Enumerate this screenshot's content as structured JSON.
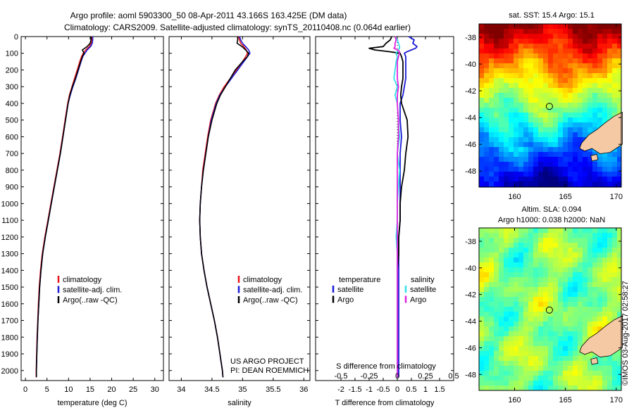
{
  "header": {
    "line1": "Argo profile: aoml 5903300_50 08-Apr-2011 43.166S 163.425E (DM data)",
    "line2": "Climatology: CARS2009. Satellite-adjusted climatology: synTS_20110408.nc (0.064d earlier)"
  },
  "colors": {
    "climatology": "#e8141b",
    "satellite": "#1b1bd6",
    "argo": "#000000",
    "temp_sat_diff": "#1b1bd6",
    "temp_argo_diff": "#000000",
    "sal_sat_diff": "#33e0e8",
    "sal_argo_diff": "#e020e0",
    "land": "#f5c9a4"
  },
  "depth_axis": {
    "ticks": [
      0,
      100,
      200,
      300,
      400,
      500,
      600,
      700,
      800,
      900,
      1000,
      1100,
      1200,
      1300,
      1400,
      1500,
      1600,
      1700,
      1800,
      1900,
      2000
    ],
    "range": [
      0,
      2060
    ]
  },
  "chart_data": [
    {
      "type": "line",
      "id": "temperature",
      "xlabel": "temperature (deg C)",
      "ylabel": "",
      "xlim": [
        -1,
        32
      ],
      "ylim": [
        2060,
        0
      ],
      "xticks": [
        0,
        5,
        10,
        15,
        20,
        25,
        30
      ],
      "legend": {
        "placement": "lower-center",
        "entries": [
          "climatology",
          "satellite-adj. clim.",
          "Argo(..raw -QC)"
        ]
      },
      "depth": [
        0,
        20,
        40,
        60,
        80,
        100,
        120,
        150,
        200,
        250,
        300,
        350,
        400,
        500,
        600,
        700,
        800,
        900,
        1000,
        1100,
        1200,
        1300,
        1400,
        1500,
        1600,
        1700,
        1800,
        1900,
        2000,
        2040
      ],
      "series": [
        {
          "name": "climatology",
          "values": [
            15.5,
            15.4,
            15.3,
            14.8,
            14.0,
            13.4,
            13.0,
            12.6,
            12.0,
            11.4,
            10.8,
            10.2,
            9.8,
            9.2,
            8.6,
            8.0,
            7.3,
            6.6,
            5.9,
            5.2,
            4.5,
            3.9,
            3.5,
            3.2,
            3.0,
            2.85,
            2.7,
            2.6,
            2.5,
            2.5
          ]
        },
        {
          "name": "satellite-adj. clim.",
          "values": [
            15.6,
            15.6,
            15.5,
            15.1,
            14.3,
            13.8,
            13.3,
            12.9,
            12.3,
            11.7,
            11.0,
            10.4,
            9.9,
            9.3,
            8.7,
            8.1,
            7.4,
            6.7,
            6.0,
            5.3,
            4.6,
            4.0,
            3.6,
            3.3,
            3.1,
            2.9,
            2.75,
            2.65,
            2.55,
            2.55
          ]
        },
        {
          "name": "Argo(..raw -QC)",
          "values": [
            15.2,
            15.2,
            15.0,
            14.3,
            13.2,
            13.6,
            13.2,
            12.8,
            12.2,
            11.6,
            10.9,
            10.3,
            9.9,
            9.3,
            8.7,
            8.1,
            7.4,
            6.7,
            6.0,
            5.3,
            4.6,
            4.0,
            3.6,
            3.3,
            3.1,
            2.9,
            2.75,
            2.65,
            2.55,
            2.55
          ]
        }
      ]
    },
    {
      "type": "line",
      "id": "salinity",
      "xlabel": "salinity",
      "ylabel": "",
      "xlim": [
        33.8,
        36.1
      ],
      "ylim": [
        2060,
        0
      ],
      "xticks": [
        34,
        34.5,
        35,
        35.5,
        36
      ],
      "legend": {
        "placement": "lower-center",
        "entries": [
          "climatology",
          "satellite-adj. clim.",
          "Argo(..raw -QC)"
        ]
      },
      "annotation": [
        "US ARGO PROJECT",
        "PI: DEAN ROEMMICH"
      ],
      "depth": [
        0,
        20,
        40,
        60,
        80,
        100,
        120,
        150,
        200,
        250,
        300,
        350,
        400,
        500,
        600,
        700,
        800,
        900,
        1000,
        1100,
        1200,
        1300,
        1400,
        1500,
        1600,
        1700,
        1800,
        1900,
        2000,
        2040
      ],
      "series": [
        {
          "name": "climatology",
          "values": [
            34.93,
            34.95,
            34.97,
            35.02,
            35.06,
            35.08,
            35.05,
            35.0,
            34.9,
            34.8,
            34.7,
            34.62,
            34.56,
            34.48,
            34.43,
            34.39,
            34.35,
            34.33,
            34.31,
            34.3,
            34.31,
            34.33,
            34.37,
            34.42,
            34.48,
            34.54,
            34.59,
            34.63,
            34.67,
            34.68
          ]
        },
        {
          "name": "satellite-adj. clim.",
          "values": [
            34.95,
            34.97,
            35.0,
            35.05,
            35.1,
            35.12,
            35.08,
            35.02,
            34.92,
            34.82,
            34.72,
            34.63,
            34.57,
            34.49,
            34.44,
            34.4,
            34.36,
            34.33,
            34.31,
            34.3,
            34.31,
            34.33,
            34.37,
            34.42,
            34.48,
            34.54,
            34.59,
            34.63,
            34.67,
            34.68
          ]
        },
        {
          "name": "Argo(..raw -QC)",
          "values": [
            34.92,
            34.92,
            34.91,
            34.99,
            35.05,
            35.1,
            35.08,
            35.0,
            34.88,
            34.8,
            34.72,
            34.64,
            34.58,
            34.5,
            34.44,
            34.4,
            34.36,
            34.33,
            34.31,
            34.3,
            34.31,
            34.33,
            34.37,
            34.42,
            34.48,
            34.54,
            34.59,
            34.63,
            34.67,
            34.68
          ]
        }
      ]
    },
    {
      "type": "line",
      "id": "differences",
      "xlabel": "T difference from climatology",
      "xlabel2": "S difference from climatology",
      "xlim": [
        -2.9,
        2.0
      ],
      "ylim": [
        2060,
        0
      ],
      "xticks": [
        -2,
        -1.5,
        -1,
        -0.5,
        0,
        0.5,
        1,
        1.5
      ],
      "xticklabels": [
        "-2",
        "-1.5",
        "-1",
        "-0.5",
        "0",
        "0.5",
        "1",
        "1.5"
      ],
      "sticks_pos": [
        -0.5,
        -0.25,
        0,
        0.25,
        0.5
      ],
      "sticklabels": [
        "-0.5",
        "-0.25",
        "0",
        "0.25",
        "0.5"
      ],
      "s_scale": 4,
      "legend": {
        "placement": "lower",
        "temperature_title": "temperature",
        "salinity_title": "salinity",
        "temperature_entries": [
          "satellite",
          "Argo"
        ],
        "salinity_entries": [
          "satellite",
          "Argo"
        ]
      },
      "depth": [
        0,
        20,
        40,
        60,
        70,
        80,
        90,
        100,
        120,
        150,
        200,
        250,
        300,
        350,
        400,
        500,
        600,
        700,
        800,
        900,
        1000,
        1100,
        1200,
        1300,
        1400,
        1500,
        1600,
        1700,
        1800,
        1900,
        2000,
        2040
      ],
      "series": [
        {
          "name": "temperature satellite",
          "values": [
            0.4,
            0.6,
            0.55,
            0.7,
            0.65,
            0.5,
            0.35,
            0.25,
            0.3,
            0.3,
            0.3,
            0.3,
            0.25,
            0.2,
            0.1,
            0.1,
            0.15,
            0.1,
            0.1,
            0.1,
            0.1,
            0.1,
            0.05,
            0.05,
            0.05,
            0.05,
            0.05,
            0.05,
            0.05,
            0.05,
            0.05,
            0.05
          ]
        },
        {
          "name": "temperature Argo",
          "values": [
            -0.2,
            -0.25,
            -0.4,
            -0.5,
            -1.0,
            -0.8,
            -0.3,
            0.1,
            0.15,
            0.2,
            0.2,
            0.2,
            0.15,
            0.12,
            0.15,
            0.35,
            0.38,
            0.3,
            0.25,
            0.15,
            0.1,
            0.1,
            0.05,
            0.05,
            0.0,
            0.0,
            0.0,
            0.0,
            0.0,
            0.0,
            0.0,
            0.0
          ]
        },
        {
          "name": "salinity satellite",
          "values": [
            -0.02,
            0.0,
            0.01,
            0.02,
            0.02,
            0.01,
            0.0,
            -0.01,
            0.0,
            -0.01,
            -0.02,
            -0.03,
            0.0,
            -0.02,
            0.0,
            0.01,
            0.02,
            0.0,
            0.02,
            0.01,
            0.0,
            0.0,
            -0.01,
            0.0,
            0.0,
            0.0,
            0.0,
            0.0,
            0.0,
            0.0,
            0.0,
            0.0
          ]
        },
        {
          "name": "salinity Argo",
          "values": [
            -0.02,
            -0.01,
            -0.02,
            -0.02,
            -0.03,
            0.0,
            0.02,
            0.02,
            0.01,
            0.0,
            0.0,
            0.0,
            0.01,
            0.0,
            0.0,
            0.01,
            0.01,
            0.0,
            0.0,
            0.0,
            0.0,
            0.0,
            0.0,
            0.0,
            0.0,
            0.0,
            0.0,
            0.0,
            0.0,
            0.0,
            0.0,
            0.0
          ]
        }
      ]
    },
    {
      "type": "heatmap",
      "id": "sst_map",
      "title": "sat. SST: 15.4  Argo: 15.1",
      "xlim": [
        156.5,
        170.5
      ],
      "ylim": [
        -49.2,
        -37.0
      ],
      "xticks": [
        160,
        165,
        170
      ],
      "yticks": [
        -38,
        -40,
        -42,
        -44,
        -46,
        -48
      ],
      "argo_position": {
        "lon": 163.425,
        "lat": -43.166
      }
    },
    {
      "type": "heatmap",
      "id": "sla_map",
      "title_line1": "Altim. SLA: 0.094",
      "title_line2": "Argo h1000: 0.038 h2000: NaN",
      "xlim": [
        156.5,
        170.5
      ],
      "ylim": [
        -49.2,
        -37.0
      ],
      "xticks": [
        160,
        165,
        170
      ],
      "yticks": [
        -38,
        -40,
        -42,
        -44,
        -46,
        -48
      ],
      "argo_position": {
        "lon": 163.425,
        "lat": -43.166
      }
    }
  ],
  "credit": "©IMOS 03-Aug-2017 02:58:27"
}
